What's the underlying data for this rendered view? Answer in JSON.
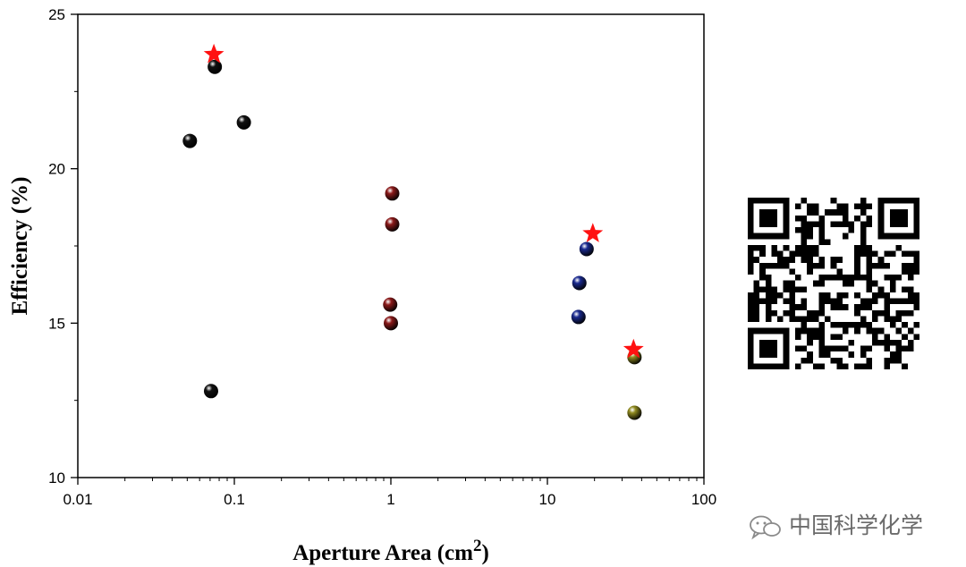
{
  "chart_data": {
    "type": "scatter",
    "xlabel": "Aperture Area (cm",
    "xlabel_sup": "2",
    "xlabel_end": ")",
    "ylabel": "Efficiency (%)",
    "xscale": "log",
    "xlim": [
      0.01,
      100
    ],
    "ylim": [
      10,
      25
    ],
    "x_ticks": [
      0.01,
      0.1,
      1,
      10,
      100
    ],
    "x_tick_labels": [
      "0.01",
      "0.1",
      "1",
      "10",
      "100"
    ],
    "y_ticks": [
      10,
      15,
      20,
      25
    ],
    "y_tick_labels": [
      "10",
      "15",
      "20",
      "25"
    ],
    "grid": false,
    "legend": "none",
    "series": [
      {
        "color": "#111111",
        "marker": "sphere",
        "points": [
          [
            0.052,
            20.9
          ],
          [
            0.075,
            23.3
          ],
          [
            0.115,
            21.5
          ],
          [
            0.071,
            12.8
          ]
        ]
      },
      {
        "color": "#8b1a1a",
        "marker": "sphere",
        "points": [
          [
            1.02,
            19.2
          ],
          [
            1.02,
            18.2
          ],
          [
            0.99,
            15.6
          ],
          [
            1.0,
            15.0
          ]
        ]
      },
      {
        "color": "#1a2a8f",
        "marker": "sphere",
        "points": [
          [
            17.8,
            17.4
          ],
          [
            16.0,
            16.3
          ],
          [
            15.8,
            15.2
          ]
        ]
      },
      {
        "color": "#8f8a1f",
        "marker": "sphere",
        "points": [
          [
            36.0,
            13.9
          ],
          [
            36.0,
            12.1
          ]
        ]
      },
      {
        "color": "#ff1111",
        "marker": "star",
        "points": [
          [
            0.074,
            23.7
          ],
          [
            19.5,
            17.9
          ],
          [
            35.5,
            14.15
          ]
        ]
      }
    ]
  },
  "watermark": {
    "text": "中国科学化学"
  }
}
